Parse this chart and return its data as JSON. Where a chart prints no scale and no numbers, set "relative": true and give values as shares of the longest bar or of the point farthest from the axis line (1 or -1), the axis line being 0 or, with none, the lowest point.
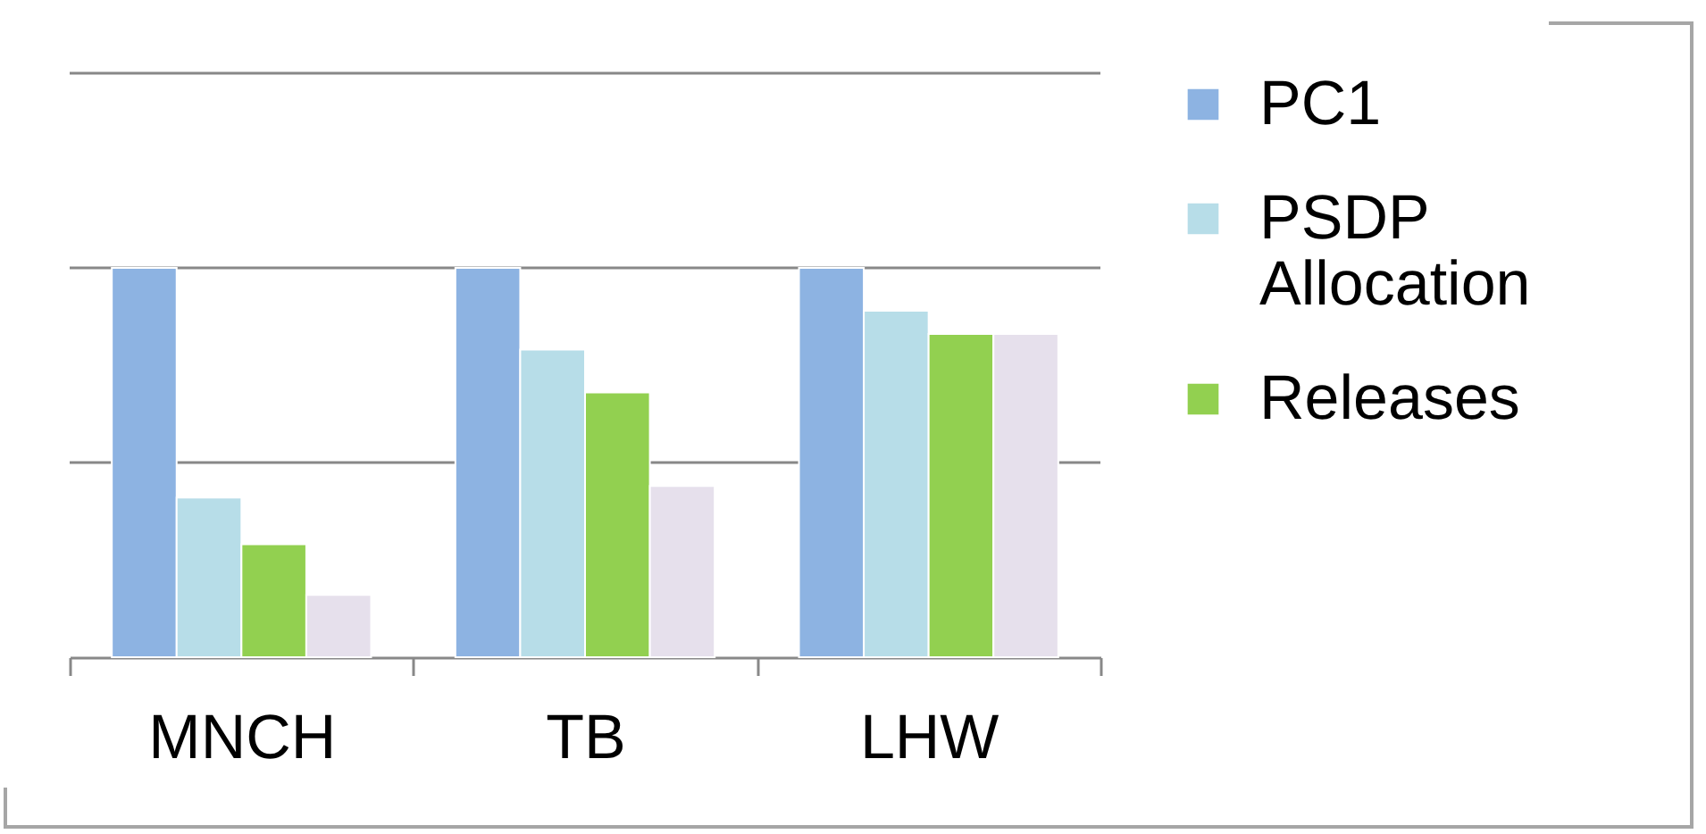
{
  "chart_data": {
    "type": "bar",
    "relative": true,
    "categories": [
      "MNCH",
      "TB",
      "LHW"
    ],
    "series": [
      {
        "name": "PC1",
        "color": "#8db3e2",
        "values": [
          1,
          1,
          1
        ]
      },
      {
        "name": "PSDP Allocation",
        "color": "#b7dde8",
        "values": [
          0.41,
          0.79,
          0.89
        ]
      },
      {
        "name": "Releases",
        "color": "#92d050",
        "values": [
          0.29,
          0.68,
          0.83
        ]
      },
      {
        "color": "#e6e0ec",
        "values": [
          0.16,
          0.44,
          0.83
        ]
      }
    ],
    "ref_lines": [
      {
        "axis": "y",
        "value": 0.5,
        "color": "#888888"
      },
      {
        "axis": "y",
        "value": 1,
        "color": "#888888"
      },
      {
        "axis": "y",
        "value": 1.5,
        "color": "#888888"
      }
    ],
    "legend": "right"
  }
}
